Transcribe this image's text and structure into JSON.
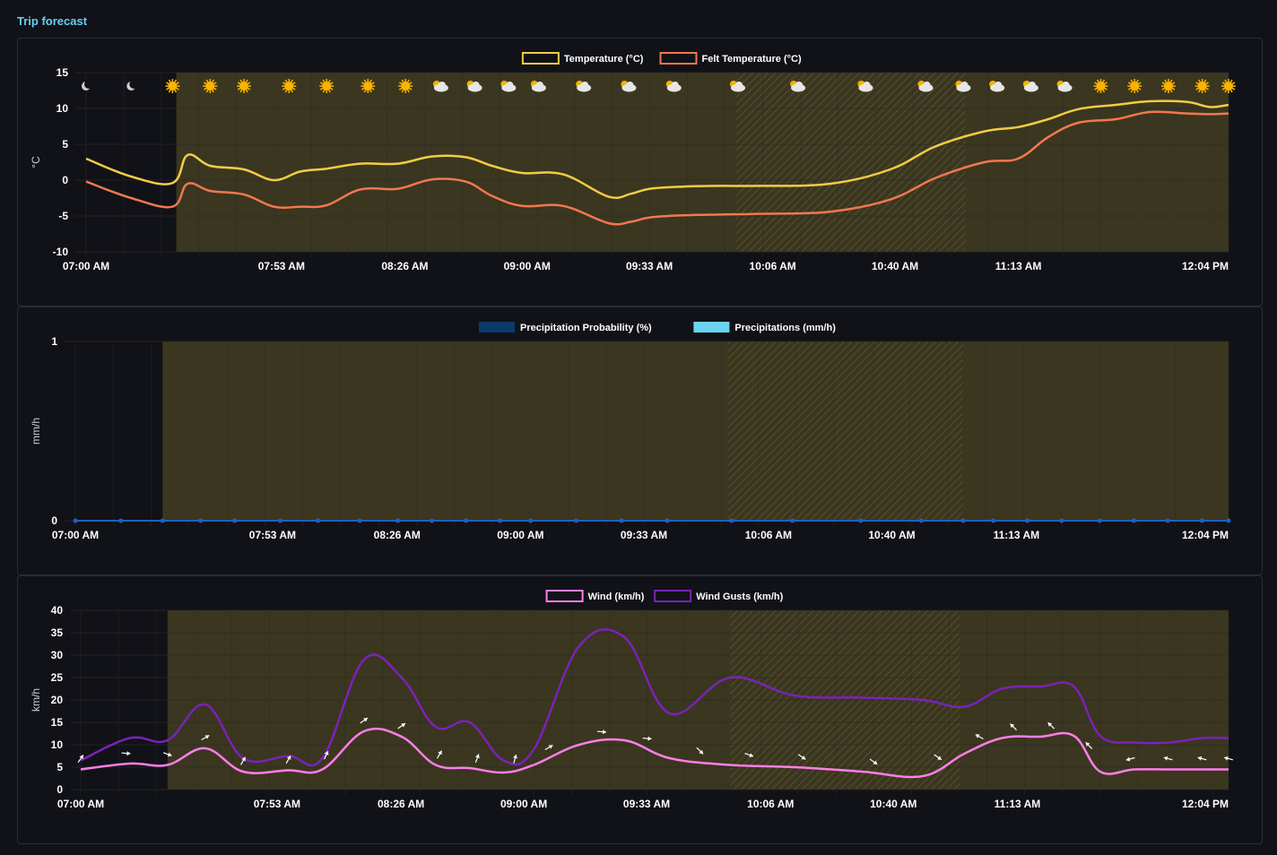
{
  "page": {
    "title": "Trip forecast"
  },
  "colors": {
    "temperature": "#f2cc45",
    "felt_temperature": "#f07850",
    "precip_probability": "#0c3a6b",
    "precipitations": "#6ad4f2",
    "wind": "#ff7ee8",
    "wind_gusts": "#7b22b8",
    "daylight_band": "#3b361f",
    "axis_text": "#ffffff",
    "grid": "#2b2b2b"
  },
  "chart_data": [
    {
      "id": "temperature",
      "type": "line",
      "ylabel": "°C",
      "ylim": [
        -10,
        15
      ],
      "yticks": [
        "15",
        "10",
        "5",
        "0",
        "-5",
        "-10"
      ],
      "xtick_labels": [
        "07:00 AM",
        "07:53 AM",
        "08:26 AM",
        "09:00 AM",
        "09:33 AM",
        "10:06 AM",
        "10:40 AM",
        "11:13 AM",
        "12:04 PM"
      ],
      "xlim_minutes": [
        420,
        724
      ],
      "daylight_from_minutes": 444,
      "hatched_range_minutes": [
        593,
        654
      ],
      "legend": [
        "Temperature (°C)",
        "Felt Temperature (°C)"
      ],
      "weather_icons": [
        {
          "t": 420,
          "icon": "moon"
        },
        {
          "t": 432,
          "icon": "moon"
        },
        {
          "t": 443,
          "icon": "sun"
        },
        {
          "t": 453,
          "icon": "sun"
        },
        {
          "t": 462,
          "icon": "sun"
        },
        {
          "t": 474,
          "icon": "sun"
        },
        {
          "t": 484,
          "icon": "sun"
        },
        {
          "t": 495,
          "icon": "sun"
        },
        {
          "t": 505,
          "icon": "sun"
        },
        {
          "t": 514,
          "icon": "sun-cloud"
        },
        {
          "t": 523,
          "icon": "sun-cloud"
        },
        {
          "t": 532,
          "icon": "sun-cloud"
        },
        {
          "t": 540,
          "icon": "sun-cloud"
        },
        {
          "t": 552,
          "icon": "sun-cloud"
        },
        {
          "t": 564,
          "icon": "sun-cloud"
        },
        {
          "t": 576,
          "icon": "sun-cloud"
        },
        {
          "t": 593,
          "icon": "sun-cloud"
        },
        {
          "t": 609,
          "icon": "sun-cloud"
        },
        {
          "t": 627,
          "icon": "sun-cloud"
        },
        {
          "t": 643,
          "icon": "sun-cloud"
        },
        {
          "t": 653,
          "icon": "sun-cloud"
        },
        {
          "t": 662,
          "icon": "sun-cloud"
        },
        {
          "t": 671,
          "icon": "sun-cloud"
        },
        {
          "t": 680,
          "icon": "sun-cloud"
        },
        {
          "t": 690,
          "icon": "sun"
        },
        {
          "t": 699,
          "icon": "sun"
        },
        {
          "t": 708,
          "icon": "sun"
        },
        {
          "t": 717,
          "icon": "sun"
        },
        {
          "t": 724,
          "icon": "sun"
        }
      ],
      "series": [
        {
          "name": "Temperature (°C)",
          "x": [
            420,
            432,
            443,
            447,
            453,
            462,
            470,
            477,
            484,
            493,
            503,
            512,
            521,
            528,
            536,
            547,
            559,
            565,
            570,
            579,
            589,
            599,
            618,
            634,
            646,
            659,
            668,
            676,
            684,
            694,
            703,
            713,
            719,
            724
          ],
          "y": [
            3,
            0.5,
            -0.4,
            3.5,
            2,
            1.5,
            0,
            1.2,
            1.6,
            2.3,
            2.3,
            3.3,
            3.2,
            2,
            1,
            0.8,
            -2.3,
            -1.9,
            -1.2,
            -0.9,
            -0.8,
            -0.8,
            -0.5,
            1.5,
            4.7,
            6.8,
            7.4,
            8.5,
            9.9,
            10.5,
            11,
            10.9,
            10.2,
            10.5
          ]
        },
        {
          "name": "Felt Temperature (°C)",
          "x": [
            420,
            432,
            443,
            447,
            453,
            462,
            470,
            477,
            484,
            493,
            503,
            512,
            521,
            528,
            536,
            547,
            559,
            565,
            570,
            579,
            589,
            599,
            618,
            634,
            646,
            659,
            668,
            676,
            684,
            694,
            703,
            713,
            719,
            724
          ],
          "y": [
            -0.2,
            -2.5,
            -3.7,
            -0.5,
            -1.5,
            -2,
            -3.7,
            -3.7,
            -3.5,
            -1.3,
            -1.2,
            0.1,
            -0.2,
            -2.2,
            -3.6,
            -3.6,
            -6,
            -5.8,
            -5.2,
            -4.9,
            -4.8,
            -4.7,
            -4.4,
            -2.7,
            0.3,
            2.5,
            3,
            6,
            8,
            8.5,
            9.5,
            9.3,
            9.2,
            9.3
          ]
        }
      ]
    },
    {
      "id": "precipitation",
      "type": "bar",
      "ylabel": "mm/h",
      "ylim": [
        0,
        1
      ],
      "yticks": [
        "1",
        "0"
      ],
      "xtick_labels": [
        "07:00 AM",
        "07:53 AM",
        "08:26 AM",
        "09:00 AM",
        "09:33 AM",
        "10:06 AM",
        "10:40 AM",
        "11:13 AM",
        "12:04 PM"
      ],
      "xlim_minutes": [
        420,
        724
      ],
      "daylight_from_minutes": 443,
      "hatched_range_minutes": [
        592,
        654
      ],
      "legend": [
        "Precipitation Probability (%)",
        "Precipitations (mm/h)"
      ],
      "series": [
        {
          "name": "Precipitation Probability (%)",
          "x": [
            420,
            432,
            443,
            453,
            462,
            474,
            484,
            495,
            505,
            514,
            523,
            532,
            540,
            552,
            564,
            576,
            593,
            609,
            627,
            643,
            654,
            662,
            671,
            680,
            690,
            699,
            708,
            717,
            724
          ],
          "values": [
            0,
            0,
            0,
            0,
            0,
            0,
            0,
            0,
            0,
            0,
            0,
            0,
            0,
            0,
            0,
            0,
            0,
            0,
            0,
            0,
            0,
            0,
            0,
            0,
            0,
            0,
            0,
            0,
            0
          ]
        },
        {
          "name": "Precipitations (mm/h)",
          "x": [
            420,
            432,
            443,
            453,
            462,
            474,
            484,
            495,
            505,
            514,
            523,
            532,
            540,
            552,
            564,
            576,
            593,
            609,
            627,
            643,
            654,
            662,
            671,
            680,
            690,
            699,
            708,
            717,
            724
          ],
          "values": [
            0,
            0,
            0,
            0,
            0,
            0,
            0,
            0,
            0,
            0,
            0,
            0,
            0,
            0,
            0,
            0,
            0,
            0,
            0,
            0,
            0,
            0,
            0,
            0,
            0,
            0,
            0,
            0,
            0
          ]
        }
      ]
    },
    {
      "id": "wind",
      "type": "line",
      "ylabel": "km/h",
      "ylim": [
        0,
        40
      ],
      "yticks": [
        "40",
        "35",
        "30",
        "25",
        "20",
        "15",
        "10",
        "5",
        "0"
      ],
      "xtick_labels": [
        "07:00 AM",
        "07:53 AM",
        "08:26 AM",
        "09:00 AM",
        "09:33 AM",
        "10:06 AM",
        "10:40 AM",
        "11:13 AM",
        "12:04 PM"
      ],
      "xlim_minutes": [
        420,
        724
      ],
      "daylight_from_minutes": 443,
      "hatched_range_minutes": [
        592,
        653
      ],
      "legend": [
        "Wind (km/h)",
        "Wind Gusts (km/h)"
      ],
      "wind_arrows": [
        {
          "t": 420,
          "deg": 35
        },
        {
          "t": 432,
          "deg": 95
        },
        {
          "t": 443,
          "deg": 110
        },
        {
          "t": 453,
          "deg": 60
        },
        {
          "t": 463,
          "deg": 30
        },
        {
          "t": 475,
          "deg": 30
        },
        {
          "t": 485,
          "deg": 25
        },
        {
          "t": 495,
          "deg": 55
        },
        {
          "t": 505,
          "deg": 55
        },
        {
          "t": 515,
          "deg": 30
        },
        {
          "t": 525,
          "deg": 20
        },
        {
          "t": 535,
          "deg": 15
        },
        {
          "t": 544,
          "deg": 60
        },
        {
          "t": 558,
          "deg": 95
        },
        {
          "t": 570,
          "deg": 95
        },
        {
          "t": 584,
          "deg": 135
        },
        {
          "t": 597,
          "deg": 110
        },
        {
          "t": 611,
          "deg": 125
        },
        {
          "t": 630,
          "deg": 125
        },
        {
          "t": 647,
          "deg": 125
        },
        {
          "t": 658,
          "deg": 300
        },
        {
          "t": 667,
          "deg": 315
        },
        {
          "t": 677,
          "deg": 315
        },
        {
          "t": 687,
          "deg": 315
        },
        {
          "t": 698,
          "deg": 255
        },
        {
          "t": 708,
          "deg": 285
        },
        {
          "t": 717,
          "deg": 285
        },
        {
          "t": 724,
          "deg": 285
        }
      ],
      "series": [
        {
          "name": "Wind (km/h)",
          "x": [
            420,
            433,
            443,
            453,
            463,
            475,
            484,
            495,
            505,
            514,
            523,
            532,
            540,
            552,
            564,
            576,
            592,
            609,
            627,
            643,
            654,
            664,
            674,
            683,
            690,
            699,
            708,
            717,
            724
          ],
          "y": [
            4.5,
            5.8,
            5.5,
            9.2,
            4,
            4.3,
            4.5,
            13,
            11.8,
            5.5,
            4.8,
            3.8,
            5.5,
            10,
            11,
            7,
            5.5,
            5,
            4,
            3,
            8,
            11.5,
            11.8,
            12,
            4,
            4.5,
            4.5,
            4.5,
            4.5
          ]
        },
        {
          "name": "Wind Gusts (km/h)",
          "x": [
            420,
            433,
            443,
            453,
            463,
            475,
            484,
            495,
            505,
            514,
            523,
            532,
            540,
            552,
            564,
            576,
            592,
            609,
            627,
            643,
            654,
            664,
            674,
            683,
            690,
            699,
            708,
            717,
            724
          ],
          "y": [
            6.5,
            11.5,
            11,
            19,
            7,
            7.5,
            7,
            29,
            25,
            14,
            15,
            6.5,
            9,
            32,
            34,
            17,
            25,
            21,
            20.5,
            20,
            18.5,
            22.5,
            23,
            23,
            12,
            10.5,
            10.5,
            11.5,
            11.5
          ]
        }
      ]
    }
  ]
}
